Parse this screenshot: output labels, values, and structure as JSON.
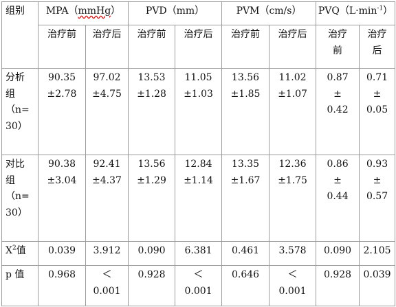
{
  "header": {
    "group": "组别",
    "mpa_prefix": "MPA（",
    "mpa_unit": "mmHg",
    "mpa_suffix": "）",
    "pvd": "PVD（mm）",
    "pvm": "PVM（cm/s）",
    "pvq_prefix": "PVQ（L·min",
    "pvq_sup": "-1",
    "pvq_suffix": "）"
  },
  "subheader": {
    "before": "治疗前",
    "after": "治疗后",
    "pvq_before_1": "治疗",
    "pvq_before_2": "前",
    "pvq_after_1": "治疗",
    "pvq_after_2": "后"
  },
  "rows": [
    {
      "label_lines": [
        "分析",
        "组",
        "（n=",
        "30）"
      ],
      "cells": [
        [
          "90.35",
          "±2.78"
        ],
        [
          "97.02",
          "±4.75"
        ],
        [
          "13.53",
          "±1.28"
        ],
        [
          "11.05",
          "±1.03"
        ],
        [
          "13.56",
          "±1.85"
        ],
        [
          "11.02",
          "±1.07"
        ],
        [
          "0.87",
          "±",
          "0.42"
        ],
        [
          "0.71",
          "±",
          "0.05"
        ]
      ]
    },
    {
      "label_lines": [
        "对比",
        "组",
        "（n=",
        "30）"
      ],
      "cells": [
        [
          "90.38",
          "±3.04"
        ],
        [
          "92.41",
          "±4.37"
        ],
        [
          "13.56",
          "±1.29"
        ],
        [
          "12.84",
          "±1.14"
        ],
        [
          "13.35",
          "±1.67"
        ],
        [
          "12.36",
          "±1.75"
        ],
        [
          "0.86",
          "±",
          "0.44"
        ],
        [
          "0.93",
          "±",
          "0.57"
        ]
      ]
    }
  ],
  "chi_row": {
    "label_main": "X",
    "label_sup": "2",
    "label_suffix": "值",
    "values": [
      "0.039",
      "3.912",
      "0.090",
      "6.381",
      "0.461",
      "3.578",
      "0.090",
      "2.105"
    ]
  },
  "p_row": {
    "label": "p 值",
    "values": [
      [
        "0.968"
      ],
      [
        "＜",
        "0.001"
      ],
      [
        "0.928"
      ],
      [
        "＜",
        "0.001"
      ],
      [
        "0.646"
      ],
      [
        "＜",
        "0.001"
      ],
      [
        "0.928"
      ],
      [
        "0.039"
      ]
    ]
  }
}
